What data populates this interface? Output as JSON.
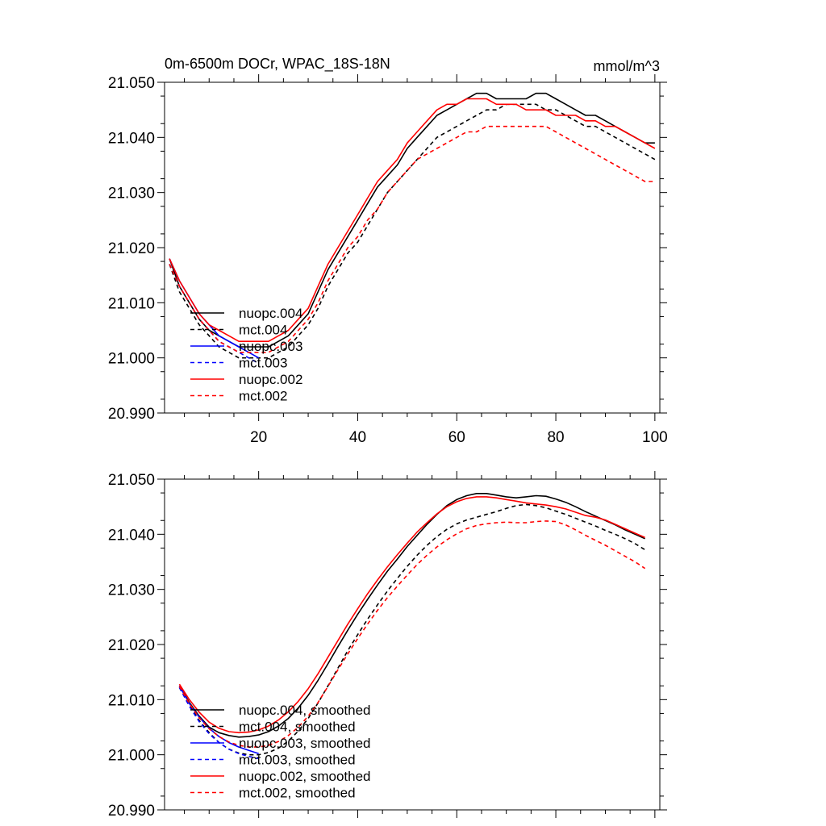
{
  "figure": {
    "title_left": "0m-6500m DOCr, WPAC_18S-18N",
    "title_right": "mmol/m^3"
  },
  "chart_data": [
    {
      "type": "line",
      "panel": "top",
      "title": "0m-6500m DOCr, WPAC_18S-18N",
      "units": "mmol/m^3",
      "xlim": [
        1,
        101
      ],
      "ylim": [
        20.99,
        21.05
      ],
      "xticks": [
        20,
        40,
        60,
        80,
        100
      ],
      "xtick_labels": [
        "20",
        "40",
        "60",
        "80",
        "100"
      ],
      "yticks": [
        20.99,
        21.0,
        21.01,
        21.02,
        21.03,
        21.04,
        21.05
      ],
      "ytick_labels": [
        "20.990",
        "21.000",
        "21.010",
        "21.020",
        "21.030",
        "21.040",
        "21.050"
      ],
      "legend_position": "bottom-left",
      "series": [
        {
          "name": "nuopc.004",
          "color": "#000000",
          "dash": "solid",
          "x": [
            2,
            4,
            6,
            8,
            10,
            12,
            14,
            16,
            18,
            20,
            22,
            24,
            26,
            28,
            30,
            32,
            34,
            36,
            38,
            40,
            42,
            44,
            46,
            48,
            50,
            52,
            54,
            56,
            58,
            60,
            62,
            64,
            66,
            68,
            70,
            72,
            74,
            76,
            78,
            80,
            82,
            84,
            86,
            88,
            90,
            92,
            94,
            96,
            98,
            100
          ],
          "y": [
            21.018,
            21.013,
            21.01,
            21.007,
            21.005,
            21.004,
            21.003,
            21.002,
            21.002,
            21.002,
            21.002,
            21.003,
            21.004,
            21.006,
            21.008,
            21.012,
            21.016,
            21.019,
            21.022,
            21.025,
            21.028,
            21.031,
            21.033,
            21.035,
            21.038,
            21.04,
            21.042,
            21.044,
            21.045,
            21.046,
            21.047,
            21.048,
            21.048,
            21.047,
            21.047,
            21.047,
            21.047,
            21.048,
            21.048,
            21.047,
            21.046,
            21.045,
            21.044,
            21.044,
            21.043,
            21.042,
            21.041,
            21.04,
            21.039,
            21.039
          ]
        },
        {
          "name": "mct.004",
          "color": "#000000",
          "dash": "dashed",
          "x": [
            2,
            4,
            6,
            8,
            10,
            12,
            14,
            16,
            18,
            20,
            22,
            24,
            26,
            28,
            30,
            32,
            34,
            36,
            38,
            40,
            42,
            44,
            46,
            48,
            50,
            52,
            54,
            56,
            58,
            60,
            62,
            64,
            66,
            68,
            70,
            72,
            74,
            76,
            78,
            80,
            82,
            84,
            86,
            88,
            90,
            92,
            94,
            96,
            98,
            100
          ],
          "y": [
            21.017,
            21.012,
            21.009,
            21.006,
            21.004,
            21.002,
            21.001,
            21.0,
            21.0,
            21.0,
            21.0,
            21.001,
            21.002,
            21.004,
            21.006,
            21.009,
            21.013,
            21.016,
            21.019,
            21.021,
            21.024,
            21.027,
            21.03,
            21.032,
            21.034,
            21.036,
            21.038,
            21.04,
            21.041,
            21.042,
            21.043,
            21.044,
            21.045,
            21.045,
            21.046,
            21.046,
            21.046,
            21.046,
            21.045,
            21.045,
            21.044,
            21.043,
            21.042,
            21.042,
            21.041,
            21.04,
            21.039,
            21.038,
            21.037,
            21.036
          ]
        },
        {
          "name": "nuopc.003",
          "color": "#0000ff",
          "dash": "solid",
          "x": [
            2,
            4,
            6,
            8,
            10,
            12,
            14,
            16,
            18,
            20
          ],
          "y": [
            21.018,
            21.014,
            21.011,
            21.008,
            21.006,
            21.004,
            21.003,
            21.002,
            21.001,
            21.0
          ]
        },
        {
          "name": "mct.003",
          "color": "#0000ff",
          "dash": "dashed",
          "x": [
            2,
            4,
            6,
            8,
            10,
            12,
            14,
            16,
            18,
            20
          ],
          "y": [
            21.017,
            21.013,
            21.01,
            21.007,
            21.005,
            21.003,
            21.002,
            21.001,
            21.0,
            20.999
          ]
        },
        {
          "name": "nuopc.002",
          "color": "#ff0000",
          "dash": "solid",
          "x": [
            2,
            4,
            6,
            8,
            10,
            12,
            14,
            16,
            18,
            20,
            22,
            24,
            26,
            28,
            30,
            32,
            34,
            36,
            38,
            40,
            42,
            44,
            46,
            48,
            50,
            52,
            54,
            56,
            58,
            60,
            62,
            64,
            66,
            68,
            70,
            72,
            74,
            76,
            78,
            80,
            82,
            84,
            86,
            88,
            90,
            92,
            94,
            96,
            98,
            100
          ],
          "y": [
            21.018,
            21.014,
            21.011,
            21.008,
            21.006,
            21.005,
            21.004,
            21.003,
            21.003,
            21.003,
            21.003,
            21.004,
            21.005,
            21.007,
            21.009,
            21.013,
            21.017,
            21.02,
            21.023,
            21.026,
            21.029,
            21.032,
            21.034,
            21.036,
            21.039,
            21.041,
            21.043,
            21.045,
            21.046,
            21.046,
            21.047,
            21.047,
            21.047,
            21.046,
            21.046,
            21.046,
            21.045,
            21.045,
            21.045,
            21.044,
            21.044,
            21.044,
            21.043,
            21.043,
            21.042,
            21.042,
            21.041,
            21.04,
            21.039,
            21.038
          ]
        },
        {
          "name": "mct.002",
          "color": "#ff0000",
          "dash": "dashed",
          "x": [
            2,
            4,
            6,
            8,
            10,
            12,
            14,
            16,
            18,
            20,
            22,
            24,
            26,
            28,
            30,
            32,
            34,
            36,
            38,
            40,
            42,
            44,
            46,
            48,
            50,
            52,
            54,
            56,
            58,
            60,
            62,
            64,
            66,
            68,
            70,
            72,
            74,
            76,
            78,
            80,
            82,
            84,
            86,
            88,
            90,
            92,
            94,
            96,
            98,
            100
          ],
          "y": [
            21.017,
            21.013,
            21.01,
            21.007,
            21.005,
            21.003,
            21.002,
            21.001,
            21.001,
            21.001,
            21.001,
            21.002,
            21.003,
            21.005,
            21.007,
            21.01,
            21.014,
            21.017,
            21.02,
            21.022,
            21.025,
            21.027,
            21.03,
            21.032,
            21.034,
            21.036,
            21.037,
            21.038,
            21.039,
            21.04,
            21.041,
            21.041,
            21.042,
            21.042,
            21.042,
            21.042,
            21.042,
            21.042,
            21.042,
            21.041,
            21.04,
            21.039,
            21.038,
            21.037,
            21.036,
            21.035,
            21.034,
            21.033,
            21.032,
            21.032
          ]
        }
      ]
    },
    {
      "type": "line",
      "panel": "bottom",
      "title": "",
      "xlim": [
        1,
        101
      ],
      "ylim": [
        20.99,
        21.05
      ],
      "yticks": [
        20.99,
        21.0,
        21.01,
        21.02,
        21.03,
        21.04,
        21.05
      ],
      "ytick_labels": [
        "20.990",
        "21.000",
        "21.010",
        "21.020",
        "21.030",
        "21.040",
        "21.050"
      ],
      "legend_position": "bottom-left",
      "series": [
        {
          "name": "nuopc.004, smoothed",
          "color": "#000000",
          "dash": "solid",
          "x": [
            4,
            6,
            8,
            10,
            12,
            14,
            16,
            18,
            20,
            22,
            24,
            26,
            28,
            30,
            32,
            34,
            36,
            38,
            40,
            42,
            44,
            46,
            48,
            50,
            52,
            54,
            56,
            58,
            60,
            62,
            64,
            66,
            68,
            70,
            72,
            74,
            76,
            78,
            80,
            82,
            84,
            86,
            88,
            90,
            92,
            94,
            96,
            98
          ],
          "y": [
            21.0125,
            21.0095,
            21.007,
            21.005,
            21.004,
            21.0035,
            21.0032,
            21.0033,
            21.0036,
            21.0042,
            21.0052,
            21.0066,
            21.0085,
            21.0108,
            21.0135,
            21.0165,
            21.0196,
            21.0226,
            21.0255,
            21.0282,
            21.0308,
            21.0333,
            21.0355,
            21.0378,
            21.0398,
            21.0418,
            21.0436,
            21.0452,
            21.0463,
            21.047,
            21.0474,
            21.0474,
            21.0471,
            21.0468,
            21.0466,
            21.0468,
            21.047,
            21.0469,
            21.0464,
            21.0458,
            21.045,
            21.0441,
            21.0433,
            21.0425,
            21.0417,
            21.0408,
            21.04,
            21.0392
          ]
        },
        {
          "name": "mct.004, smoothed",
          "color": "#000000",
          "dash": "dashed",
          "x": [
            4,
            6,
            8,
            10,
            12,
            14,
            16,
            18,
            20,
            22,
            24,
            26,
            28,
            30,
            32,
            34,
            36,
            38,
            40,
            42,
            44,
            46,
            48,
            50,
            52,
            54,
            56,
            58,
            60,
            62,
            64,
            66,
            68,
            70,
            72,
            74,
            76,
            78,
            80,
            82,
            84,
            86,
            88,
            90,
            92,
            94,
            96,
            98
          ],
          "y": [
            21.0122,
            21.009,
            21.0062,
            21.004,
            21.0022,
            21.001,
            21.0003,
            21.0,
            21.0,
            21.0004,
            21.0012,
            21.0025,
            21.0043,
            21.0066,
            21.0094,
            21.0125,
            21.0157,
            21.0189,
            21.0218,
            21.0246,
            21.0272,
            21.0297,
            21.032,
            21.0342,
            21.0362,
            21.038,
            21.0396,
            21.0409,
            21.0419,
            21.0426,
            21.0431,
            21.0436,
            21.0441,
            21.0447,
            21.0452,
            21.0454,
            21.0452,
            21.0448,
            21.0442,
            21.0436,
            21.0429,
            21.0422,
            21.0415,
            21.0407,
            21.04,
            21.0392,
            21.0383,
            21.0372
          ]
        },
        {
          "name": "nuopc.003, smoothed",
          "color": "#0000ff",
          "dash": "solid",
          "x": [
            4,
            6,
            8,
            10,
            12,
            14,
            16,
            18,
            20
          ],
          "y": [
            21.0125,
            21.0093,
            21.0068,
            21.0048,
            21.0033,
            21.0022,
            21.0014,
            21.0008,
            21.0002
          ]
        },
        {
          "name": "mct.003, smoothed",
          "color": "#0000ff",
          "dash": "dashed",
          "x": [
            4,
            6,
            8,
            10,
            12,
            14,
            16,
            18,
            20
          ],
          "y": [
            21.0122,
            21.0088,
            21.006,
            21.0038,
            21.0022,
            21.001,
            21.0002,
            20.9997,
            20.9993
          ]
        },
        {
          "name": "nuopc.002, smoothed",
          "color": "#ff0000",
          "dash": "solid",
          "x": [
            4,
            6,
            8,
            10,
            12,
            14,
            16,
            18,
            20,
            22,
            24,
            26,
            28,
            30,
            32,
            34,
            36,
            38,
            40,
            42,
            44,
            46,
            48,
            50,
            52,
            54,
            56,
            58,
            60,
            62,
            64,
            66,
            68,
            70,
            72,
            74,
            76,
            78,
            80,
            82,
            84,
            86,
            88,
            90,
            92,
            94,
            96,
            98
          ],
          "y": [
            21.0128,
            21.01,
            21.0077,
            21.0059,
            21.0048,
            21.0042,
            21.004,
            21.0041,
            21.0045,
            21.0052,
            21.0063,
            21.0078,
            21.0097,
            21.012,
            21.0147,
            21.0177,
            21.0207,
            21.0237,
            21.0265,
            21.0292,
            21.0317,
            21.0341,
            21.0363,
            21.0384,
            21.0404,
            21.0421,
            21.0437,
            21.045,
            21.0459,
            21.0465,
            21.0468,
            21.0468,
            21.0466,
            21.0463,
            21.046,
            21.0457,
            21.0455,
            21.0453,
            21.045,
            21.0446,
            21.044,
            21.0434,
            21.0431,
            21.0426,
            21.0418,
            21.041,
            21.0402,
            21.0394
          ]
        },
        {
          "name": "mct.002, smoothed",
          "color": "#ff0000",
          "dash": "dashed",
          "x": [
            4,
            6,
            8,
            10,
            12,
            14,
            16,
            18,
            20,
            22,
            24,
            26,
            28,
            30,
            32,
            34,
            36,
            38,
            40,
            42,
            44,
            46,
            48,
            50,
            52,
            54,
            56,
            58,
            60,
            62,
            64,
            66,
            68,
            70,
            72,
            74,
            76,
            78,
            80,
            82,
            84,
            86,
            88,
            90,
            92,
            94,
            96,
            98
          ],
          "y": [
            21.0124,
            21.0093,
            21.0067,
            21.0047,
            21.0033,
            21.0023,
            21.0017,
            21.0014,
            21.0014,
            21.0017,
            21.0024,
            21.0035,
            21.005,
            21.007,
            21.0095,
            21.0124,
            21.0154,
            21.0183,
            21.0211,
            21.0237,
            21.0262,
            21.0285,
            21.0306,
            21.0326,
            21.0345,
            21.0362,
            21.0377,
            21.039,
            21.0401,
            21.041,
            21.0416,
            21.0419,
            21.0421,
            21.0422,
            21.0421,
            21.0421,
            21.0423,
            21.0424,
            21.0423,
            21.0417,
            21.0408,
            21.0398,
            21.0389,
            21.038,
            21.037,
            21.036,
            21.035,
            21.0338
          ]
        }
      ]
    }
  ]
}
